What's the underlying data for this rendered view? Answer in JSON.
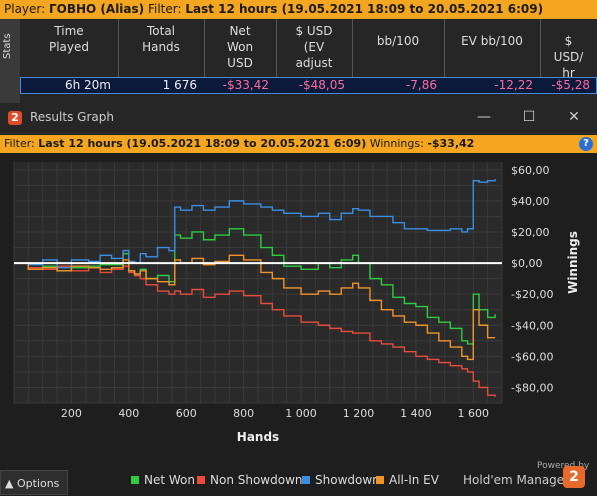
{
  "player_bar": {
    "player_label": "Player: ",
    "player_name": "ГОВНО (Alias)",
    "filter_label": "  Filter: ",
    "filter_value": "Last 12 hours (19.05.2021 18:09 to 20.05.2021 6:09)"
  },
  "stats": {
    "tab_label": "Stats",
    "headers": [
      "Time\nPlayed",
      "Total\nHands",
      "Net\nWon\nUSD",
      "$ USD\n(EV\nadjust",
      "bb/100",
      "EV bb/100",
      "$\nUSD/\nhr"
    ],
    "row": [
      "6h 20m",
      "1 676",
      "-$33,42",
      "-$48,05",
      "-7,86",
      "-12,22",
      "-$5,28"
    ]
  },
  "window": {
    "title": "Results Graph",
    "logo_text": "2",
    "minimize": "—",
    "maximize": "☐",
    "close": "✕"
  },
  "filter": {
    "label": "Filter: ",
    "value": "Last 12 hours (19.05.2021 18:09 to 20.05.2021 6:09)",
    "winnings_label": " Winnings: ",
    "winnings_value": "-$33,42",
    "help": "?"
  },
  "chart_data": {
    "type": "line",
    "xlabel": "Hands",
    "ylabel": "Winnings",
    "xlim": [
      0,
      1700
    ],
    "ylim": [
      -90,
      65
    ],
    "x_ticks": [
      200,
      400,
      600,
      800,
      1000,
      1200,
      1400,
      1600
    ],
    "x_tick_labels": [
      "200",
      "400",
      "600",
      "800",
      "1 000",
      "1 200",
      "1 400",
      "1 600"
    ],
    "y_ticks": [
      60,
      40,
      20,
      0,
      -20,
      -40,
      -60,
      -80
    ],
    "y_tick_labels": [
      "$60,00",
      "$40,00",
      "$20,00",
      "$0,00",
      "-$20,00",
      "-$40,00",
      "-$60,00",
      "-$80,00"
    ],
    "grid": true,
    "series": [
      {
        "name": "Net Won",
        "color": "#2ecc40",
        "x": [
          0,
          50,
          100,
          150,
          200,
          260,
          300,
          340,
          380,
          400,
          420,
          440,
          460,
          500,
          540,
          560,
          580,
          620,
          660,
          700,
          750,
          800,
          860,
          900,
          940,
          1000,
          1060,
          1100,
          1140,
          1180,
          1200,
          1240,
          1280,
          1320,
          1360,
          1400,
          1440,
          1480,
          1520,
          1560,
          1580,
          1600,
          1620,
          1650,
          1676
        ],
        "y": [
          0,
          -4,
          -2,
          -5,
          -3,
          -2,
          -1,
          -1,
          6,
          -5,
          -8,
          -4,
          -10,
          -8,
          -12,
          18,
          16,
          20,
          15,
          18,
          22,
          18,
          10,
          5,
          -2,
          -4,
          0,
          -3,
          2,
          5,
          0,
          -10,
          -14,
          -22,
          -26,
          -28,
          -35,
          -38,
          -42,
          -50,
          -52,
          -20,
          -30,
          -35,
          -33
        ]
      },
      {
        "name": "Non Showdown",
        "color": "#e74c3c",
        "x": [
          0,
          50,
          100,
          150,
          200,
          260,
          300,
          340,
          380,
          400,
          420,
          440,
          460,
          500,
          540,
          560,
          580,
          620,
          660,
          700,
          750,
          800,
          860,
          900,
          940,
          1000,
          1060,
          1100,
          1140,
          1180,
          1200,
          1240,
          1280,
          1320,
          1360,
          1400,
          1440,
          1480,
          1520,
          1560,
          1580,
          1600,
          1620,
          1650,
          1676
        ],
        "y": [
          0,
          -3,
          -4,
          -2,
          -5,
          -3,
          -6,
          -4,
          -2,
          -6,
          -8,
          -10,
          -14,
          -18,
          -20,
          -18,
          -20,
          -17,
          -22,
          -20,
          -18,
          -21,
          -26,
          -30,
          -34,
          -38,
          -40,
          -42,
          -44,
          -45,
          -45,
          -50,
          -52,
          -54,
          -57,
          -60,
          -62,
          -64,
          -66,
          -68,
          -70,
          -76,
          -80,
          -85,
          -86
        ]
      },
      {
        "name": "Showdown",
        "color": "#3a8ee6",
        "x": [
          0,
          50,
          100,
          150,
          200,
          260,
          300,
          340,
          380,
          400,
          420,
          440,
          460,
          500,
          540,
          560,
          580,
          620,
          660,
          700,
          750,
          800,
          860,
          900,
          940,
          1000,
          1060,
          1100,
          1140,
          1180,
          1200,
          1240,
          1280,
          1320,
          1360,
          1400,
          1440,
          1480,
          1520,
          1560,
          1580,
          1600,
          1620,
          1650,
          1676
        ],
        "y": [
          0,
          -1,
          2,
          -3,
          2,
          1,
          5,
          3,
          8,
          1,
          0,
          6,
          4,
          10,
          8,
          36,
          34,
          37,
          34,
          36,
          40,
          38,
          36,
          34,
          32,
          30,
          32,
          28,
          32,
          35,
          34,
          30,
          30,
          26,
          22,
          22,
          21,
          21,
          22,
          20,
          22,
          53,
          52,
          53,
          54
        ]
      },
      {
        "name": "All-In EV",
        "color": "#f0932b",
        "x": [
          0,
          50,
          100,
          150,
          200,
          260,
          300,
          340,
          380,
          400,
          420,
          440,
          460,
          500,
          540,
          560,
          580,
          620,
          660,
          700,
          750,
          800,
          860,
          900,
          940,
          1000,
          1060,
          1100,
          1140,
          1180,
          1200,
          1240,
          1280,
          1320,
          1360,
          1400,
          1440,
          1480,
          1520,
          1560,
          1580,
          1600,
          1620,
          1650,
          1676
        ],
        "y": [
          0,
          -4,
          -3,
          -5,
          -2,
          -3,
          -4,
          -3,
          2,
          -5,
          -7,
          -5,
          -10,
          -12,
          -14,
          2,
          0,
          3,
          -1,
          1,
          5,
          2,
          -6,
          -10,
          -16,
          -20,
          -18,
          -20,
          -16,
          -13,
          -16,
          -24,
          -30,
          -34,
          -38,
          -40,
          -45,
          -50,
          -54,
          -60,
          -62,
          -30,
          -40,
          -48,
          -48
        ]
      }
    ]
  },
  "bottom": {
    "options_label": "Options",
    "powered_by": "Powered by",
    "brand": "Hold'em Manager",
    "brand_logo": "2"
  }
}
